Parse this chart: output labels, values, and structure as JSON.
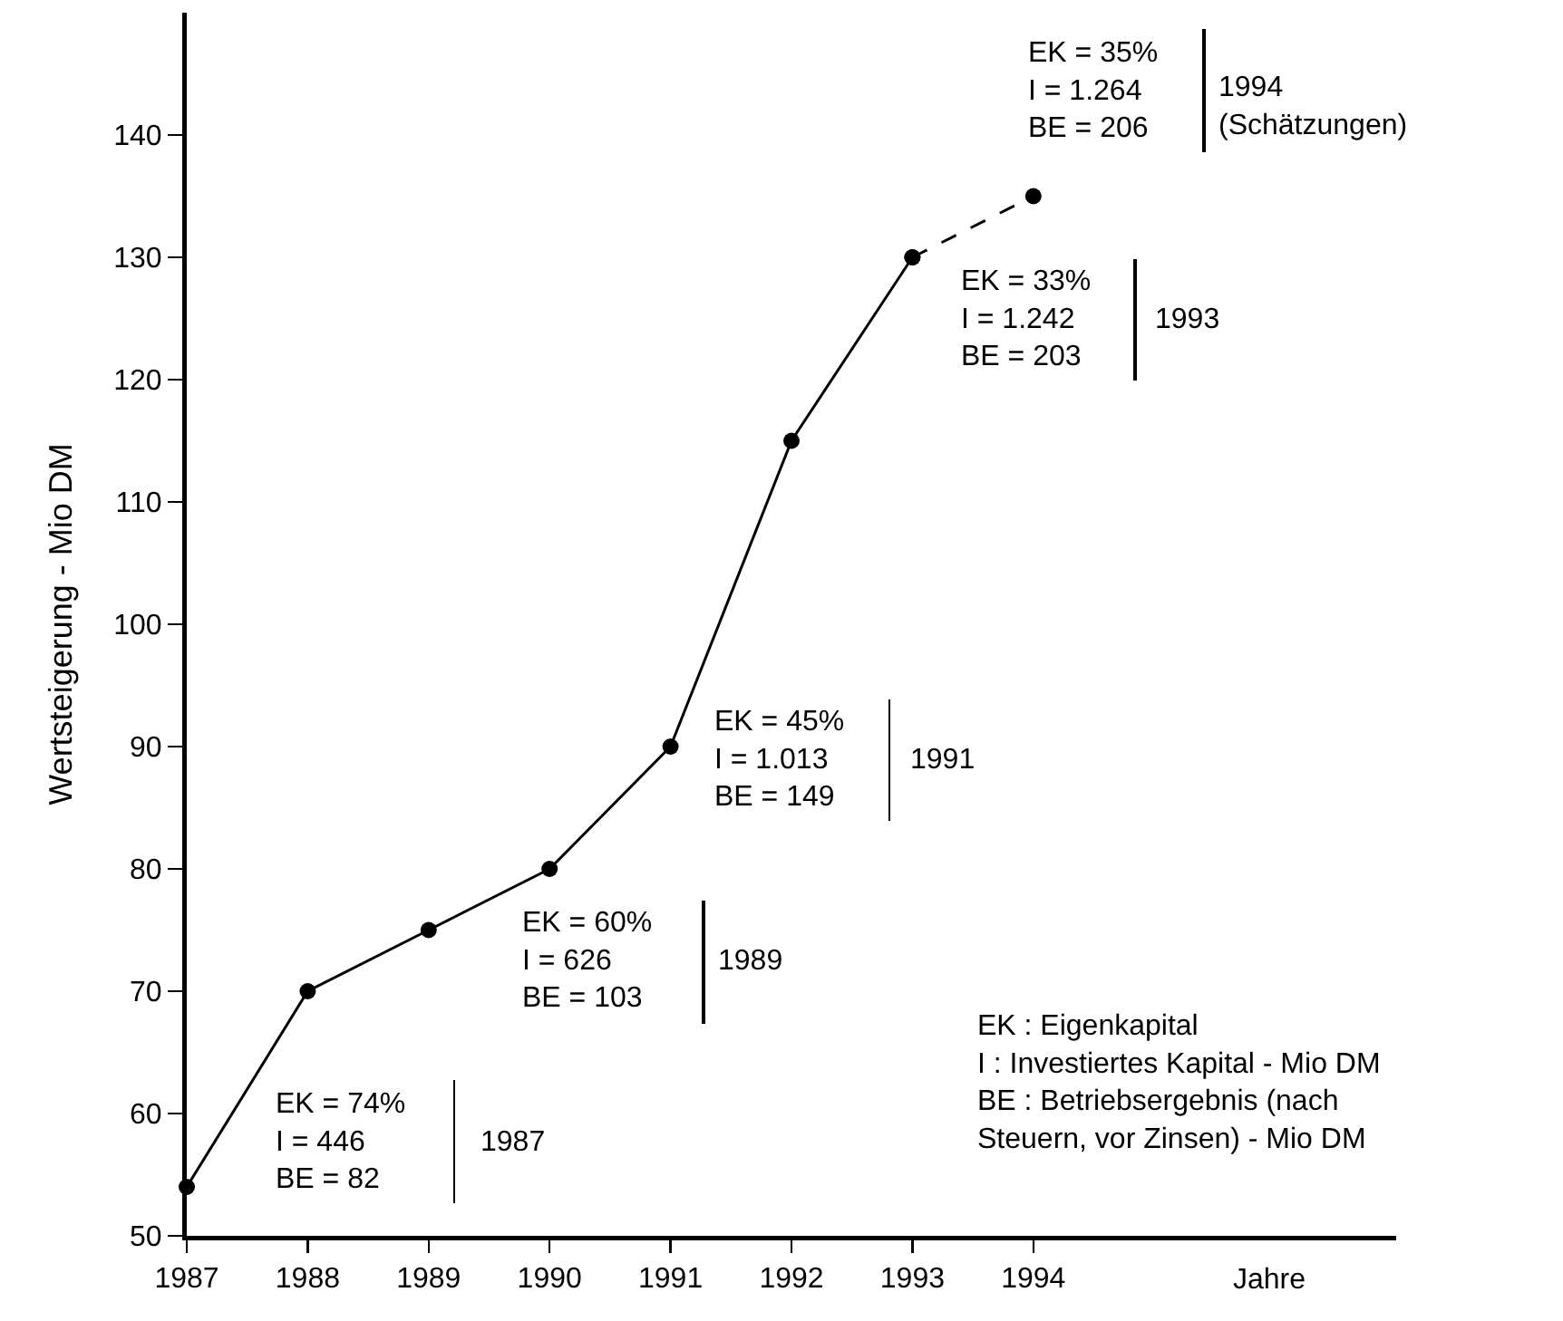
{
  "chart_data": {
    "type": "line",
    "series": [
      {
        "color": "#000000",
        "x": [
          1987,
          1988,
          1989,
          1990,
          1991,
          1992,
          1993
        ],
        "values": [
          54,
          70,
          75,
          80,
          90,
          115,
          130
        ],
        "line_style": "solid"
      },
      {
        "color": "#000000",
        "x": [
          1993,
          1994
        ],
        "values": [
          130,
          135
        ],
        "line_style": "dashed"
      }
    ],
    "xlabel": "Jahre",
    "ylabel": "Wertsteigerung - Mio DM",
    "xlim": [
      1987,
      1997
    ],
    "xticks": [
      1987,
      1988,
      1989,
      1990,
      1991,
      1992,
      1993,
      1994
    ],
    "ylim": [
      50,
      150
    ],
    "yticks": [
      50,
      60,
      70,
      80,
      90,
      100,
      110,
      120,
      130,
      140
    ],
    "grid": false,
    "marker": "circle",
    "annotations": [
      "EK = 74%\nI = 446\nBE = 82",
      "1987",
      "EK = 60%\nI = 626\nBE = 103",
      "1989",
      "EK = 45%\nI = 1.013\nBE = 149",
      "1991",
      "EK = 33%\nI = 1.242\nBE = 203",
      "1993",
      "EK = 35%\nI = 1.264\nBE = 206",
      "1994\n(Schätzungen)",
      "EK : Eigenkapital\nI : Investiertes Kapital - Mio DM\nBE : Betriebsergebnis (nach\nSteuern, vor Zinsen) - Mio DM"
    ]
  }
}
